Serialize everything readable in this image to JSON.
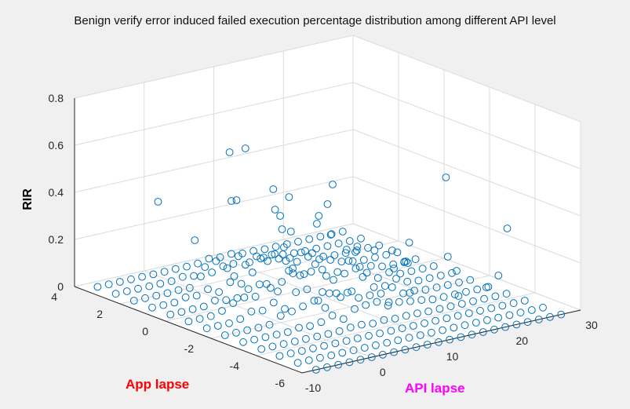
{
  "window": {
    "background": "#f0f0f0"
  },
  "colors": {
    "marker": "#0072bd",
    "app_label": "#ff0000",
    "api_label": "#ff00ff",
    "grid": "#dcdcdc",
    "axis": "#262626"
  },
  "chart_data": {
    "type": "scatter",
    "subtype": "3d-scatter",
    "title": "Benign verify error induced failed execution percentage distribution among different API level",
    "xlabel": "API lapse",
    "ylabel": "App lapse",
    "zlabel": "RIR",
    "xlim": [
      -10,
      30
    ],
    "ylim": [
      -6,
      4
    ],
    "zlim": [
      0,
      0.8
    ],
    "xticks": [
      "-10",
      "0",
      "10",
      "20",
      "30"
    ],
    "yticks": [
      "-6",
      "-4",
      "-2",
      "0",
      "2",
      "4"
    ],
    "zticks": [
      "0",
      "0.2",
      "0.4",
      "0.6",
      "0.8"
    ],
    "grid": true,
    "marker": "open circle",
    "note": "Dense grid of points at integer (x, y) positions; most RIR values near 0, peak values around 0.5",
    "points": [
      [
        8,
        2,
        0.54
      ],
      [
        11,
        1,
        0.35
      ],
      [
        9,
        3,
        0.48
      ],
      [
        27,
        -1,
        0.4
      ],
      [
        26,
        -4,
        0.3
      ],
      [
        2,
        4,
        0.28
      ],
      [
        14,
        0,
        0.42
      ],
      [
        12,
        2,
        0.34
      ],
      [
        10,
        -1,
        0.4
      ],
      [
        6,
        2,
        0.33
      ],
      [
        16,
        -2,
        0.2
      ],
      [
        15,
        1,
        0.21
      ],
      [
        18,
        -2,
        0.14
      ],
      [
        22,
        -3,
        0.11
      ],
      [
        24,
        -2,
        0.12
      ],
      [
        20,
        0,
        0.1
      ],
      [
        28,
        -3,
        0.05
      ],
      [
        4,
        3,
        0.14
      ],
      [
        7,
        0,
        0.2
      ],
      [
        13,
        -3,
        0.18
      ],
      [
        5,
        -1,
        0.16
      ],
      [
        3,
        1,
        0.12
      ],
      [
        9,
        -4,
        0.1
      ],
      [
        19,
        -4,
        0.06
      ],
      [
        17,
        1,
        0.15
      ],
      [
        11,
        -2,
        0.25
      ],
      [
        12,
        0,
        0.3
      ],
      [
        10,
        1,
        0.22
      ],
      [
        8,
        0,
        0.26
      ],
      [
        14,
        -1,
        0.17
      ],
      [
        16,
        0,
        0.13
      ],
      [
        21,
        -1,
        0.08
      ],
      [
        23,
        -4,
        0.07
      ],
      [
        25,
        0,
        0.1
      ],
      [
        6,
        -2,
        0.09
      ],
      [
        13,
        2,
        0.22
      ],
      [
        15,
        -3,
        0.19
      ],
      [
        9,
        1,
        0.31
      ],
      [
        10,
        3,
        0.27
      ],
      [
        12,
        -4,
        0.12
      ]
    ]
  }
}
